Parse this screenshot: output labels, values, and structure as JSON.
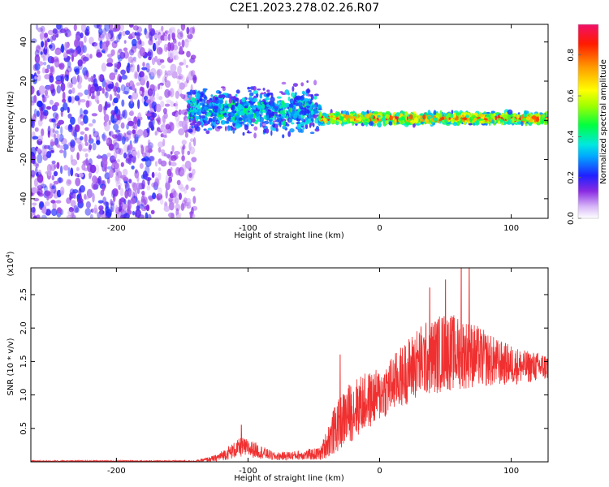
{
  "title": "C2E1.2023.278.02.26.R07",
  "colorbar": {
    "label": "Normalized spectral amplitude",
    "ticks": [
      "0.0",
      "0.2",
      "0.4",
      "0.6",
      "0.8"
    ],
    "range": [
      0,
      0.95
    ]
  },
  "chart_data": [
    {
      "type": "heatmap",
      "title": "",
      "xlabel": "Height of straight line (km)",
      "ylabel": "Frequency (Hz)",
      "xlim": [
        -265,
        128
      ],
      "ylim": [
        -50,
        49
      ],
      "x_ticks": [
        "-200",
        "-100",
        "0",
        "100"
      ],
      "y_ticks": [
        "-40",
        "-20",
        "0",
        "20",
        "40"
      ],
      "grid": false,
      "bands": [
        {
          "x_range": [
            -265,
            -170
          ],
          "freq_range": [
            -50,
            49
          ],
          "amplitude": 0.15,
          "density": "dense"
        },
        {
          "x_range": [
            -170,
            -140
          ],
          "freq_range": [
            -50,
            49
          ],
          "amplitude": 0.1,
          "density": "sparse"
        },
        {
          "x_range": [
            -145,
            -45
          ],
          "center_freq": 5,
          "half_width": 12,
          "amplitude": 0.35
        },
        {
          "x_range": [
            -45,
            128
          ],
          "center_freq": 1,
          "half_width": 4,
          "amplitude": 0.7
        }
      ]
    },
    {
      "type": "line",
      "title": "",
      "xlabel": "Height of straight line (km)",
      "ylabel": "SNR (10 * v/v)",
      "y_multiplier": "(x10",
      "y_multiplier_exp": "4",
      "xlim": [
        -265,
        128
      ],
      "ylim": [
        0,
        2.9
      ],
      "x_ticks": [
        "-200",
        "-100",
        "0",
        "100"
      ],
      "y_ticks": [
        "0.5",
        "1.0",
        "1.5",
        "2.0",
        "2.5"
      ],
      "grid": false,
      "color": "#f03030",
      "envelope": {
        "x": [
          -265,
          -140,
          -125,
          -105,
          -95,
          -80,
          -60,
          -45,
          -35,
          -25,
          -15,
          0,
          15,
          30,
          50,
          70,
          90,
          110,
          128
        ],
        "mean": [
          0.01,
          0.01,
          0.05,
          0.22,
          0.18,
          0.08,
          0.1,
          0.12,
          0.45,
          0.7,
          0.85,
          1.0,
          1.25,
          1.5,
          1.65,
          1.6,
          1.48,
          1.42,
          1.42
        ],
        "spread": [
          0.01,
          0.01,
          0.05,
          0.15,
          0.12,
          0.06,
          0.07,
          0.1,
          0.35,
          0.45,
          0.45,
          0.4,
          0.45,
          0.55,
          0.6,
          0.5,
          0.35,
          0.25,
          0.2
        ]
      },
      "peaks": [
        {
          "x": 50,
          "y": 2.72
        },
        {
          "x": 62,
          "y": 2.9
        },
        {
          "x": 68,
          "y": 2.9
        },
        {
          "x": 38,
          "y": 2.6
        },
        {
          "x": -30,
          "y": 1.6
        },
        {
          "x": -105,
          "y": 0.55
        }
      ]
    }
  ]
}
